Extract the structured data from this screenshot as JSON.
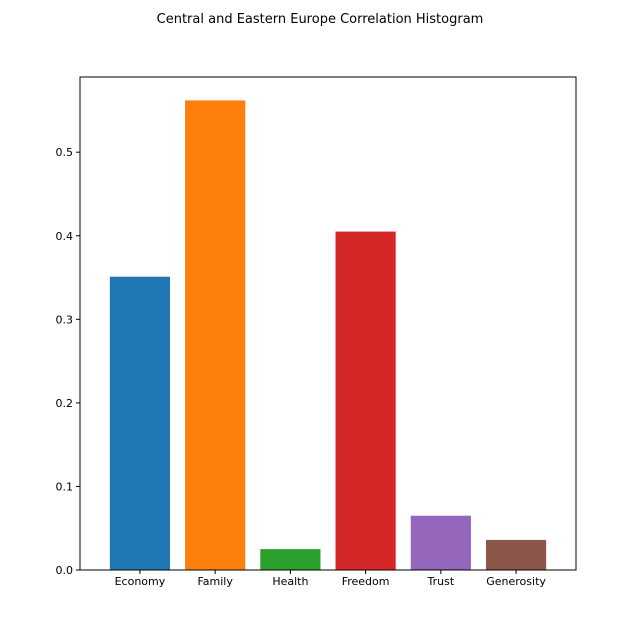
{
  "chart_data": {
    "type": "bar",
    "title": "Central and Eastern Europe Correlation Histogram",
    "xlabel": "",
    "ylabel": "",
    "categories": [
      "Economy",
      "Family",
      "Health",
      "Freedom",
      "Trust",
      "Generosity"
    ],
    "values": [
      0.351,
      0.562,
      0.025,
      0.405,
      0.065,
      0.036
    ],
    "colors": [
      "#1f77b4",
      "#ff7f0e",
      "#2ca02c",
      "#d62728",
      "#9467bd",
      "#8c564b"
    ],
    "ylim": [
      0,
      0.59
    ],
    "yticks": [
      0.0,
      0.1,
      0.2,
      0.3,
      0.4,
      0.5
    ],
    "ytick_labels": [
      "0.0",
      "0.1",
      "0.2",
      "0.3",
      "0.4",
      "0.5"
    ],
    "grid": false,
    "legend": "none"
  }
}
